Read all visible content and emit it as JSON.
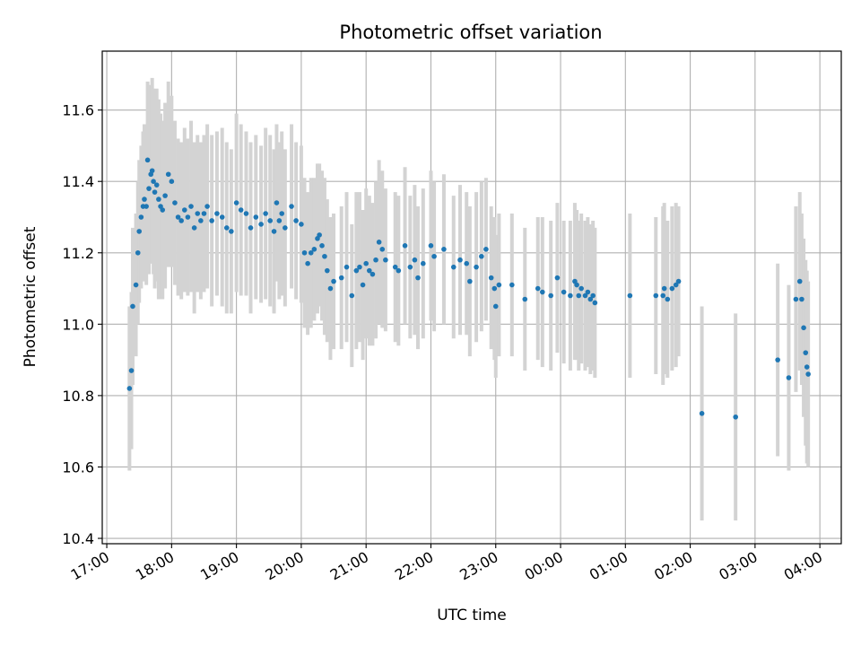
{
  "colors": {
    "points": "#1f77b4",
    "errorbars": "#d3d3d3",
    "grid": "#b0b0b0"
  },
  "chart_data": {
    "type": "scatter",
    "title": "Photometric offset variation",
    "xlabel": "UTC time",
    "ylabel": "Photometric offset",
    "xlim": [
      16.93,
      28.33
    ],
    "ylim": [
      10.385,
      11.765
    ],
    "grid": true,
    "x_ticks": [
      {
        "value": 17,
        "label": "17:00"
      },
      {
        "value": 18,
        "label": "18:00"
      },
      {
        "value": 19,
        "label": "19:00"
      },
      {
        "value": 20,
        "label": "20:00"
      },
      {
        "value": 21,
        "label": "21:00"
      },
      {
        "value": 22,
        "label": "22:00"
      },
      {
        "value": 23,
        "label": "23:00"
      },
      {
        "value": 24,
        "label": "00:00"
      },
      {
        "value": 25,
        "label": "01:00"
      },
      {
        "value": 26,
        "label": "02:00"
      },
      {
        "value": 27,
        "label": "03:00"
      },
      {
        "value": 28,
        "label": "04:00"
      }
    ],
    "y_ticks": [
      {
        "value": 10.4,
        "label": "10.4"
      },
      {
        "value": 10.6,
        "label": "10.6"
      },
      {
        "value": 10.8,
        "label": "10.8"
      },
      {
        "value": 11.0,
        "label": "11.0"
      },
      {
        "value": 11.2,
        "label": "11.2"
      },
      {
        "value": 11.4,
        "label": "11.4"
      },
      {
        "value": 11.6,
        "label": "11.6"
      }
    ],
    "series": [
      {
        "name": "offset",
        "x": [
          17.35,
          17.38,
          17.4,
          17.45,
          17.48,
          17.5,
          17.53,
          17.56,
          17.58,
          17.61,
          17.63,
          17.65,
          17.68,
          17.7,
          17.72,
          17.74,
          17.77,
          17.8,
          17.83,
          17.86,
          17.9,
          17.95,
          18.0,
          18.05,
          18.1,
          18.15,
          18.2,
          18.25,
          18.3,
          18.35,
          18.4,
          18.45,
          18.5,
          18.55,
          18.62,
          18.7,
          18.78,
          18.85,
          18.92,
          19.0,
          19.07,
          19.15,
          19.22,
          19.3,
          19.38,
          19.45,
          19.52,
          19.58,
          19.62,
          19.66,
          19.7,
          19.75,
          19.85,
          19.92,
          20.0,
          20.05,
          20.1,
          20.15,
          20.2,
          20.25,
          20.28,
          20.32,
          20.36,
          20.4,
          20.45,
          20.5,
          20.62,
          20.7,
          20.78,
          20.85,
          20.9,
          20.95,
          21.0,
          21.05,
          21.1,
          21.15,
          21.2,
          21.25,
          21.3,
          21.45,
          21.5,
          21.6,
          21.68,
          21.75,
          21.8,
          21.88,
          22.0,
          22.05,
          22.2,
          22.35,
          22.45,
          22.55,
          22.6,
          22.7,
          22.78,
          22.85,
          22.93,
          22.98,
          23.0,
          23.05,
          23.25,
          23.45,
          23.65,
          23.72,
          23.85,
          23.95,
          24.05,
          24.15,
          24.22,
          24.25,
          24.28,
          24.32,
          24.38,
          24.42,
          24.46,
          24.5,
          24.53,
          25.07,
          25.47,
          25.58,
          25.6,
          25.65,
          25.72,
          25.78,
          25.82,
          26.18,
          26.7,
          27.35,
          27.52,
          27.63,
          27.69,
          27.72,
          27.75,
          27.78,
          27.8,
          27.82
        ],
        "y": [
          10.82,
          10.87,
          11.05,
          11.11,
          11.2,
          11.26,
          11.3,
          11.33,
          11.35,
          11.33,
          11.46,
          11.38,
          11.42,
          11.43,
          11.4,
          11.37,
          11.39,
          11.35,
          11.33,
          11.32,
          11.36,
          11.42,
          11.4,
          11.34,
          11.3,
          11.29,
          11.32,
          11.3,
          11.33,
          11.27,
          11.31,
          11.29,
          11.31,
          11.33,
          11.29,
          11.31,
          11.3,
          11.27,
          11.26,
          11.34,
          11.32,
          11.31,
          11.27,
          11.3,
          11.28,
          11.31,
          11.29,
          11.26,
          11.34,
          11.29,
          11.31,
          11.27,
          11.33,
          11.29,
          11.28,
          11.2,
          11.17,
          11.2,
          11.21,
          11.24,
          11.25,
          11.22,
          11.19,
          11.15,
          11.1,
          11.12,
          11.13,
          11.16,
          11.08,
          11.15,
          11.16,
          11.11,
          11.17,
          11.15,
          11.14,
          11.18,
          11.23,
          11.21,
          11.18,
          11.16,
          11.15,
          11.22,
          11.16,
          11.18,
          11.13,
          11.17,
          11.22,
          11.19,
          11.21,
          11.16,
          11.18,
          11.17,
          11.12,
          11.16,
          11.19,
          11.21,
          11.13,
          11.1,
          11.05,
          11.11,
          11.11,
          11.07,
          11.1,
          11.09,
          11.08,
          11.13,
          11.09,
          11.08,
          11.12,
          11.11,
          11.08,
          11.1,
          11.08,
          11.09,
          11.07,
          11.08,
          11.06,
          11.08,
          11.08,
          11.08,
          11.1,
          11.07,
          11.1,
          11.11,
          11.12,
          10.75,
          10.74,
          10.9,
          10.85,
          11.07,
          11.12,
          11.07,
          10.99,
          10.92,
          10.88,
          10.86
        ],
        "err": [
          0.23,
          0.22,
          0.22,
          0.2,
          0.2,
          0.2,
          0.2,
          0.21,
          0.21,
          0.22,
          0.22,
          0.24,
          0.25,
          0.26,
          0.26,
          0.27,
          0.27,
          0.28,
          0.26,
          0.25,
          0.26,
          0.26,
          0.24,
          0.23,
          0.22,
          0.22,
          0.23,
          0.22,
          0.24,
          0.24,
          0.22,
          0.22,
          0.22,
          0.23,
          0.24,
          0.23,
          0.25,
          0.24,
          0.23,
          0.25,
          0.24,
          0.23,
          0.24,
          0.23,
          0.22,
          0.24,
          0.24,
          0.23,
          0.22,
          0.22,
          0.23,
          0.22,
          0.23,
          0.22,
          0.22,
          0.21,
          0.2,
          0.21,
          0.2,
          0.21,
          0.2,
          0.21,
          0.22,
          0.2,
          0.2,
          0.19,
          0.2,
          0.21,
          0.2,
          0.22,
          0.21,
          0.21,
          0.21,
          0.21,
          0.2,
          0.22,
          0.23,
          0.22,
          0.2,
          0.21,
          0.21,
          0.22,
          0.2,
          0.21,
          0.2,
          0.21,
          0.21,
          0.21,
          0.21,
          0.2,
          0.21,
          0.2,
          0.21,
          0.21,
          0.21,
          0.2,
          0.2,
          0.2,
          0.2,
          0.2,
          0.2,
          0.2,
          0.2,
          0.21,
          0.21,
          0.21,
          0.2,
          0.21,
          0.22,
          0.21,
          0.21,
          0.21,
          0.21,
          0.21,
          0.21,
          0.21,
          0.21,
          0.23,
          0.22,
          0.25,
          0.24,
          0.22,
          0.23,
          0.23,
          0.21,
          0.3,
          0.29,
          0.27,
          0.26,
          0.26,
          0.25,
          0.24,
          0.25,
          0.26,
          0.27,
          0.26
        ]
      }
    ]
  }
}
